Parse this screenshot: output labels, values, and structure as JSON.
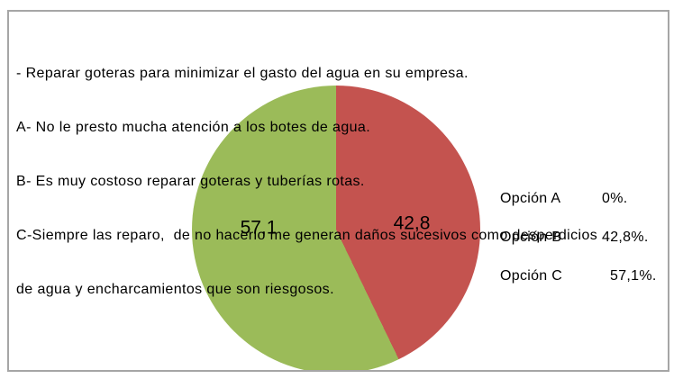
{
  "canvas": {
    "background": "#ffffff",
    "frame_border_color": "#a6a6a6"
  },
  "question_block": {
    "lines": [
      "- Reparar goteras para minimizar el gasto del agua en su empresa.",
      "A- No le presto mucha atención a los botes de agua.",
      "B- Es muy costoso reparar goteras y tuberías rotas.",
      "C-Siempre las reparo,  de no hacerlo me generan daños sucesivos como desperdicios",
      "de agua y encharcamientos que son riesgosos."
    ]
  },
  "chart_data": {
    "type": "pie",
    "title": "",
    "start_angle_deg": 0,
    "direction": "clockwise",
    "slices": [
      {
        "name": "Opción B",
        "value": 42.8,
        "data_label": "42,8",
        "color": "#c4534f"
      },
      {
        "name": "Opción C",
        "value": 57.1,
        "data_label": "57,1",
        "color": "#9bbb59"
      },
      {
        "name": "Opción A",
        "value": 0,
        "data_label": "",
        "color": null
      }
    ],
    "legend_position": "right",
    "legend": [
      {
        "label": "Opción A",
        "value": "0%."
      },
      {
        "label": "Opción B",
        "value": "42,8%."
      },
      {
        "label": "Opción C",
        "value": "57,1%."
      }
    ]
  }
}
